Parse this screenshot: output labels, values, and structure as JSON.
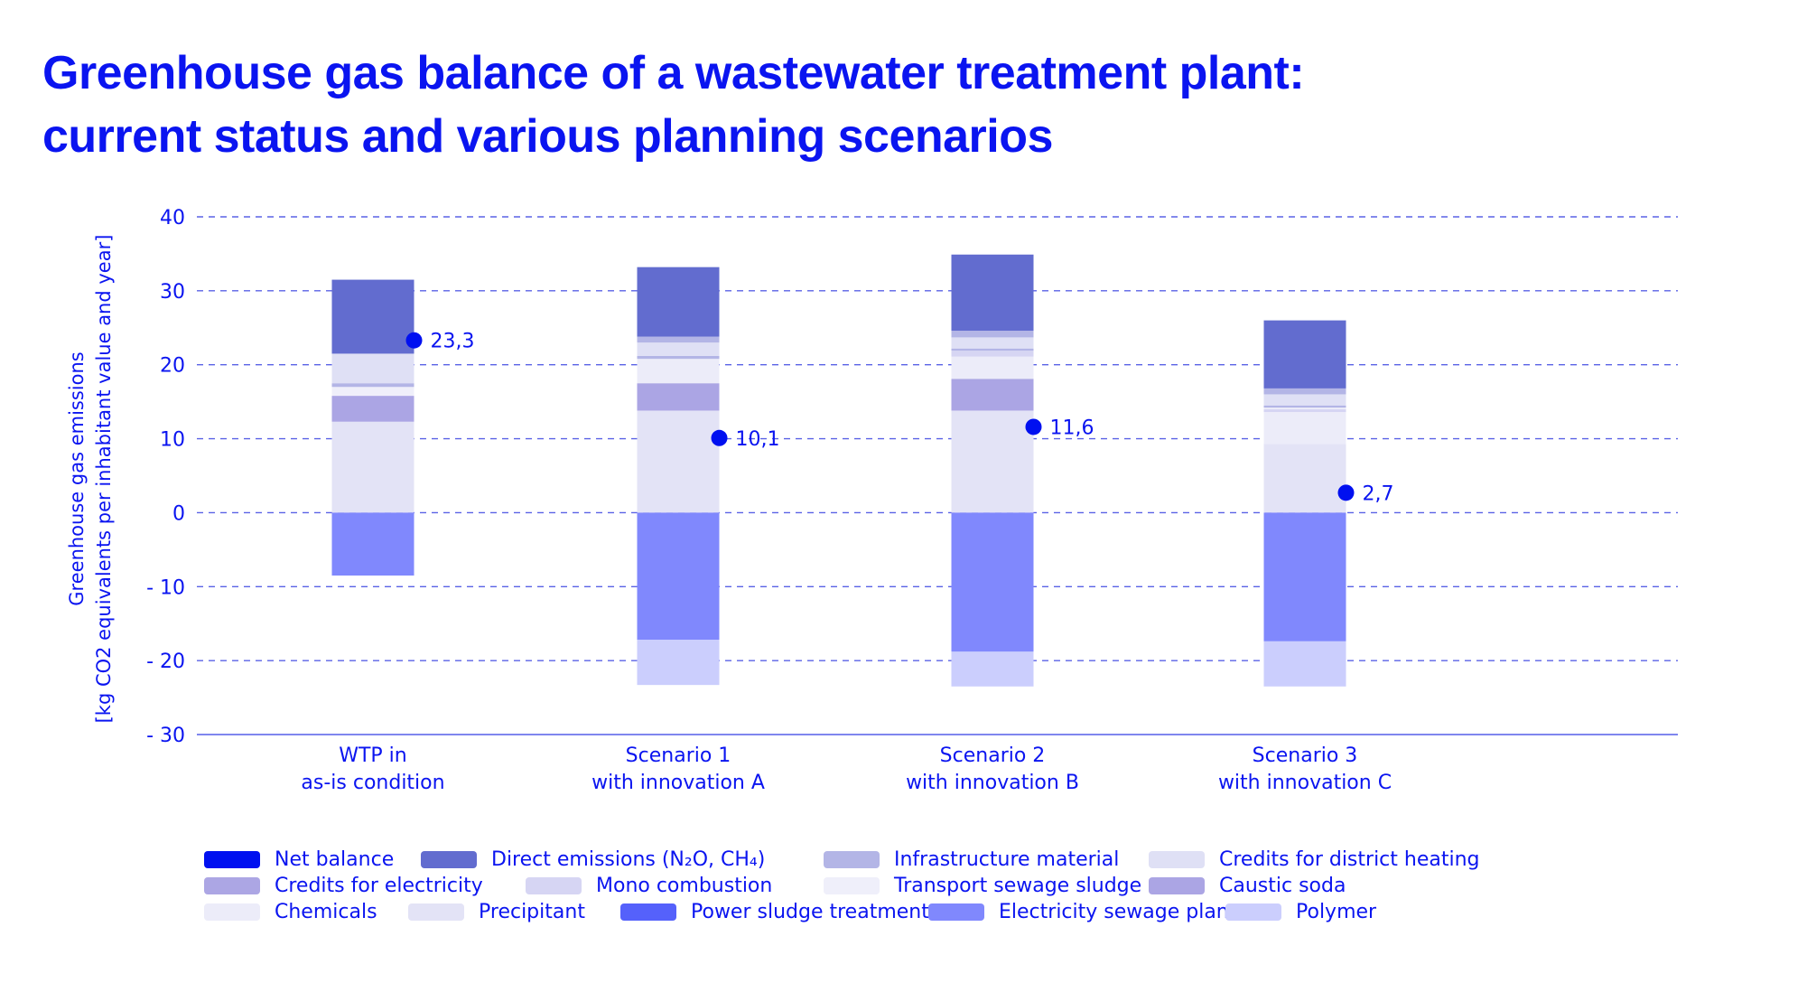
{
  "title": {
    "line1": "Greenhouse gas balance of a wastewater treatment plant:",
    "line2": "current status and various planning scenarios"
  },
  "chart_data": {
    "type": "bar",
    "stacked": true,
    "title": "Greenhouse gas balance of a wastewater treatment plant: current status and various planning scenarios",
    "xlabel": "",
    "ylabel_line1": "Greenhouse gas emissions",
    "ylabel_line2": "[kg CO2 equivalents per inhabitant value and year]",
    "ylim": [
      -30,
      40
    ],
    "yticks": [
      40,
      30,
      20,
      10,
      0,
      -10,
      -20,
      -30
    ],
    "ytick_labels": [
      "40",
      "30",
      "20",
      "10",
      "0",
      "- 10",
      "- 20",
      "- 30"
    ],
    "grid": true,
    "legend_position": "bottom",
    "categories": [
      {
        "line1": "WTP in",
        "line2": "as-is condition"
      },
      {
        "line1": "Scenario 1",
        "line2": "with innovation A"
      },
      {
        "line1": "Scenario 2",
        "line2": "with innovation B"
      },
      {
        "line1": "Scenario 3",
        "line2": "with innovation C"
      }
    ],
    "series": [
      {
        "name": "Net balance",
        "color": "#0010f0"
      },
      {
        "name": "Direct emissions (N2O, CH4)",
        "color": "#626ccf"
      },
      {
        "name": "Infrastructure material",
        "color": "#b3b5e6"
      },
      {
        "name": "Credits for district heating",
        "color": "#dfe0f5"
      },
      {
        "name": "Credits for electricity",
        "color": "#aca6e4"
      },
      {
        "name": "Mono combustion",
        "color": "#d6d5f3"
      },
      {
        "name": "Transport sewage sludge",
        "color": "#efeffa"
      },
      {
        "name": "Caustic soda",
        "color": "#aba5e4"
      },
      {
        "name": "Chemicals",
        "color": "#ececf9"
      },
      {
        "name": "Precipitant",
        "color": "#e3e3f6"
      },
      {
        "name": "Power sludge treatment",
        "color": "#5561fb"
      },
      {
        "name": "Electricity sewage plant",
        "color": "#8088fd"
      },
      {
        "name": "Polymer",
        "color": "#cbcefd"
      }
    ],
    "stacks": [
      {
        "category": "WTP in as-is condition",
        "segments": [
          {
            "series": "Precipitant",
            "from": 0,
            "to": 12.3
          },
          {
            "series": "Caustic soda",
            "from": 12.3,
            "to": 15.8
          },
          {
            "series": "Transport sewage sludge",
            "from": 15.8,
            "to": 17.0
          },
          {
            "series": "Infrastructure material",
            "from": 17.0,
            "to": 17.5
          },
          {
            "series": "Credits for district heating",
            "from": 17.5,
            "to": 21.5
          },
          {
            "series": "Direct emissions (N2O, CH4)",
            "from": 21.5,
            "to": 31.5
          },
          {
            "series": "Electricity sewage plant",
            "from": -8.5,
            "to": 0
          }
        ],
        "net_balance": 23.3,
        "net_label": "23,3"
      },
      {
        "category": "Scenario 1 with innovation A",
        "segments": [
          {
            "series": "Precipitant",
            "from": 0,
            "to": 13.8
          },
          {
            "series": "Caustic soda",
            "from": 13.8,
            "to": 17.5
          },
          {
            "series": "Chemicals",
            "from": 17.5,
            "to": 20.8
          },
          {
            "series": "Infrastructure material",
            "from": 20.8,
            "to": 21.2
          },
          {
            "series": "Credits for district heating",
            "from": 21.2,
            "to": 23.0
          },
          {
            "series": "Infrastructure material",
            "from": 23.0,
            "to": 23.8
          },
          {
            "series": "Direct emissions (N2O, CH4)",
            "from": 23.8,
            "to": 33.2
          },
          {
            "series": "Electricity sewage plant",
            "from": -17.2,
            "to": 0
          },
          {
            "series": "Polymer",
            "from": -23.3,
            "to": -17.2
          }
        ],
        "net_balance": 10.1,
        "net_label": "10,1"
      },
      {
        "category": "Scenario 2 with innovation B",
        "segments": [
          {
            "series": "Precipitant",
            "from": 0,
            "to": 13.8
          },
          {
            "series": "Caustic soda",
            "from": 13.8,
            "to": 18.1
          },
          {
            "series": "Chemicals",
            "from": 18.1,
            "to": 21.1
          },
          {
            "series": "Mono combustion",
            "from": 21.1,
            "to": 21.9
          },
          {
            "series": "Infrastructure material",
            "from": 21.9,
            "to": 22.2
          },
          {
            "series": "Credits for district heating",
            "from": 22.2,
            "to": 23.7
          },
          {
            "series": "Infrastructure material",
            "from": 23.7,
            "to": 24.6
          },
          {
            "series": "Direct emissions (N2O, CH4)",
            "from": 24.6,
            "to": 34.9
          },
          {
            "series": "Electricity sewage plant",
            "from": -18.8,
            "to": 0
          },
          {
            "series": "Polymer",
            "from": -23.5,
            "to": -18.8
          }
        ],
        "net_balance": 11.6,
        "net_label": "11,6"
      },
      {
        "category": "Scenario 3 with innovation C",
        "segments": [
          {
            "series": "Precipitant",
            "from": 0,
            "to": 9.3
          },
          {
            "series": "Chemicals",
            "from": 9.3,
            "to": 13.6
          },
          {
            "series": "Mono combustion",
            "from": 13.6,
            "to": 14.0
          },
          {
            "series": "Transport sewage sludge",
            "from": 14.0,
            "to": 14.2
          },
          {
            "series": "Infrastructure material",
            "from": 14.2,
            "to": 14.5
          },
          {
            "series": "Credits for district heating",
            "from": 14.5,
            "to": 16.0
          },
          {
            "series": "Infrastructure material",
            "from": 16.0,
            "to": 16.8
          },
          {
            "series": "Direct emissions (N2O, CH4)",
            "from": 16.8,
            "to": 26.0
          },
          {
            "series": "Electricity sewage plant",
            "from": -17.4,
            "to": 0
          },
          {
            "series": "Polymer",
            "from": -23.5,
            "to": -17.4
          }
        ],
        "net_balance": 2.7,
        "net_label": "2,7"
      }
    ]
  },
  "legend": {
    "rows": [
      [
        {
          "label": "Net balance",
          "color": "#0010f0"
        },
        {
          "label": "Direct emissions (N₂O, CH₄)",
          "color": "#626ccf"
        },
        {
          "label": "Infrastructure material",
          "color": "#b3b5e6"
        },
        {
          "label": "Credits for district heating",
          "color": "#dfe0f5"
        }
      ],
      [
        {
          "label": "Credits for electricity",
          "color": "#aca6e4"
        },
        {
          "label": "Mono combustion",
          "color": "#d6d5f3"
        },
        {
          "label": "Transport sewage sludge",
          "color": "#efeffa"
        },
        {
          "label": "Caustic soda",
          "color": "#aba5e4"
        }
      ],
      [
        {
          "label": "Chemicals",
          "color": "#ececf9"
        },
        {
          "label": "Precipitant",
          "color": "#e3e3f6"
        },
        {
          "label": "Power sludge treatment",
          "color": "#5561fb"
        },
        {
          "label": "Electricity sewage plant",
          "color": "#8088fd"
        },
        {
          "label": "Polymer",
          "color": "#cbcefd"
        }
      ]
    ]
  },
  "colors": {
    "text": "#0a14f0",
    "grid": "#5a62e6",
    "axis": "#7f86ee",
    "net_marker": "#0010f0"
  }
}
